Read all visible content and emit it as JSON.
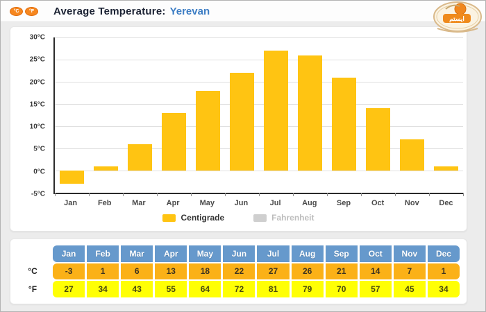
{
  "page": {
    "background": "#ECECEC",
    "border_color": "#B3B3B3"
  },
  "header": {
    "title": "Average Temperature:",
    "city": "Yerevan",
    "unit_toggles": [
      {
        "label": "°C"
      },
      {
        "label": "°F"
      }
    ],
    "logo_text": "ایستم"
  },
  "chart_data": {
    "type": "bar",
    "title": "Average Temperature: Yerevan",
    "categories": [
      "Jan",
      "Feb",
      "Mar",
      "Apr",
      "May",
      "Jun",
      "Jul",
      "Aug",
      "Sep",
      "Oct",
      "Nov",
      "Dec"
    ],
    "series": [
      {
        "name": "Centigrade",
        "values": [
          -3,
          1,
          6,
          13,
          18,
          22,
          27,
          26,
          21,
          14,
          7,
          1
        ],
        "color": "#FFC412",
        "enabled": true
      },
      {
        "name": "Fahrenheit",
        "values": [
          27,
          34,
          43,
          55,
          64,
          72,
          81,
          79,
          70,
          57,
          45,
          34
        ],
        "color": "#CFCFCF",
        "enabled": false
      }
    ],
    "ylim": [
      -5,
      30
    ],
    "yticks": [
      30,
      25,
      20,
      15,
      10,
      5,
      0,
      -5
    ],
    "ytick_suffix": "°C",
    "grid": true,
    "legend_position": "bottom"
  },
  "table": {
    "columns": [
      "Jan",
      "Feb",
      "Mar",
      "Apr",
      "May",
      "Jun",
      "Jul",
      "Aug",
      "Sep",
      "Oct",
      "Nov",
      "Dec"
    ],
    "header_color": "#6699CC",
    "rows": [
      {
        "label": "°C",
        "values": [
          -3,
          1,
          6,
          13,
          18,
          22,
          27,
          26,
          21,
          14,
          7,
          1
        ],
        "color": "#FBB117"
      },
      {
        "label": "°F",
        "values": [
          27,
          34,
          43,
          55,
          64,
          72,
          81,
          79,
          70,
          57,
          45,
          34
        ],
        "color": "#FFFF05"
      }
    ]
  }
}
